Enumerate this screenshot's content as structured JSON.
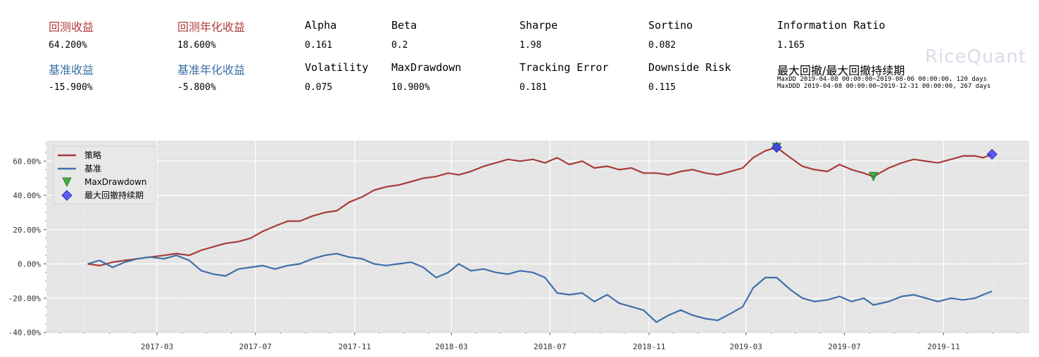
{
  "metrics_row1": [
    {
      "label": "回测收益",
      "value": "64.200%",
      "color": "red"
    },
    {
      "label": "回测年化收益",
      "value": "18.600%",
      "color": "red"
    },
    {
      "label": "Alpha",
      "value": "0.161",
      "color": "black"
    },
    {
      "label": "Beta",
      "value": "0.2",
      "color": "black"
    },
    {
      "label": "Sharpe",
      "value": "1.98",
      "color": "black"
    },
    {
      "label": "Sortino",
      "value": "0.082",
      "color": "black"
    },
    {
      "label": "Information Ratio",
      "value": "1.165",
      "color": "black"
    }
  ],
  "metrics_row2": [
    {
      "label": "基准收益",
      "value": "-15.900%",
      "color": "blue"
    },
    {
      "label": "基准年化收益",
      "value": "-5.800%",
      "color": "blue"
    },
    {
      "label": "Volatility",
      "value": "0.075",
      "color": "black"
    },
    {
      "label": "MaxDrawdown",
      "value": "10.900%",
      "color": "black"
    },
    {
      "label": "Tracking Error",
      "value": "0.181",
      "color": "black"
    },
    {
      "label": "Downside Risk",
      "value": "0.115",
      "color": "black"
    }
  ],
  "drawdown_info": {
    "label": "最大回撤/最大回撤持续期",
    "maxdd": "MaxDD  2019-04-08 00:00:00~2019-08-06 00:00:00, 120 days",
    "maxddd": "MaxDDD 2019-04-08 00:00:00~2019-12-31 00:00:00, 267 days"
  },
  "watermark": "RiceQuant",
  "colors": {
    "strategy": "#a83a3a",
    "benchmark": "#3f6fa8",
    "maxdd_marker": "#2ca02c",
    "maxddd_marker": "#3a3aff",
    "plot_bg": "#e5e5e5"
  },
  "chart_data": {
    "type": "line",
    "y_tick_labels": [
      "60.00%",
      "40.00%",
      "20.00%",
      "0.00%",
      "-20.00%",
      "-40.00%"
    ],
    "y_ticks": [
      60,
      40,
      20,
      0,
      -20,
      -40
    ],
    "ylim": [
      -40,
      72
    ],
    "x_tick_labels": [
      "2017-03",
      "2017-07",
      "2017-11",
      "2018-03",
      "2018-07",
      "2018-11",
      "2019-03",
      "2019-07",
      "2019-11"
    ],
    "x_ticks": [
      "2017-03-01",
      "2017-07-01",
      "2017-11-01",
      "2018-03-01",
      "2018-07-01",
      "2018-11-01",
      "2019-03-01",
      "2019-07-01",
      "2019-11-01"
    ],
    "xlim": [
      "2016-10-15",
      "2020-02-15"
    ],
    "grid": true,
    "legend_position": "top-left",
    "series": [
      {
        "name": "策略",
        "x": [
          "2016-12-05",
          "2016-12-20",
          "2017-01-05",
          "2017-01-20",
          "2017-02-05",
          "2017-02-20",
          "2017-03-10",
          "2017-03-25",
          "2017-04-10",
          "2017-04-25",
          "2017-05-10",
          "2017-05-25",
          "2017-06-10",
          "2017-06-25",
          "2017-07-10",
          "2017-07-25",
          "2017-08-10",
          "2017-08-25",
          "2017-09-10",
          "2017-09-25",
          "2017-10-10",
          "2017-10-25",
          "2017-11-10",
          "2017-11-25",
          "2017-12-10",
          "2017-12-25",
          "2018-01-10",
          "2018-01-25",
          "2018-02-10",
          "2018-02-25",
          "2018-03-10",
          "2018-03-25",
          "2018-04-10",
          "2018-04-25",
          "2018-05-10",
          "2018-05-25",
          "2018-06-10",
          "2018-06-25",
          "2018-07-10",
          "2018-07-25",
          "2018-08-10",
          "2018-08-25",
          "2018-09-10",
          "2018-09-25",
          "2018-10-10",
          "2018-10-25",
          "2018-11-10",
          "2018-11-25",
          "2018-12-10",
          "2018-12-25",
          "2019-01-10",
          "2019-01-25",
          "2019-02-10",
          "2019-02-25",
          "2019-03-10",
          "2019-03-25",
          "2019-04-08",
          "2019-04-25",
          "2019-05-10",
          "2019-05-25",
          "2019-06-10",
          "2019-06-25",
          "2019-07-10",
          "2019-07-25",
          "2019-08-06",
          "2019-08-25",
          "2019-09-10",
          "2019-09-25",
          "2019-10-10",
          "2019-10-25",
          "2019-11-10",
          "2019-11-25",
          "2019-12-10",
          "2019-12-20",
          "2019-12-31"
        ],
        "values": [
          0,
          -1,
          1,
          2,
          3,
          4,
          5,
          6,
          5,
          8,
          10,
          12,
          13,
          15,
          19,
          22,
          25,
          25,
          28,
          30,
          31,
          36,
          39,
          43,
          45,
          46,
          48,
          50,
          51,
          53,
          52,
          54,
          57,
          59,
          61,
          60,
          61,
          59,
          62,
          58,
          60,
          56,
          57,
          55,
          56,
          53,
          53,
          52,
          54,
          55,
          53,
          52,
          54,
          56,
          62,
          66,
          68,
          62,
          57,
          55,
          54,
          58,
          55,
          53,
          51,
          56,
          59,
          61,
          60,
          59,
          61,
          63,
          63,
          62,
          64
        ],
        "color": "#a83a3a"
      },
      {
        "name": "基准",
        "x": [
          "2016-12-05",
          "2016-12-20",
          "2017-01-05",
          "2017-01-20",
          "2017-02-05",
          "2017-02-20",
          "2017-03-10",
          "2017-03-25",
          "2017-04-10",
          "2017-04-25",
          "2017-05-10",
          "2017-05-25",
          "2017-06-10",
          "2017-06-25",
          "2017-07-10",
          "2017-07-25",
          "2017-08-10",
          "2017-08-25",
          "2017-09-10",
          "2017-09-25",
          "2017-10-10",
          "2017-10-25",
          "2017-11-10",
          "2017-11-25",
          "2017-12-10",
          "2017-12-25",
          "2018-01-10",
          "2018-01-25",
          "2018-02-10",
          "2018-02-25",
          "2018-03-10",
          "2018-03-25",
          "2018-04-10",
          "2018-04-25",
          "2018-05-10",
          "2018-05-25",
          "2018-06-10",
          "2018-06-25",
          "2018-07-10",
          "2018-07-25",
          "2018-08-10",
          "2018-08-25",
          "2018-09-10",
          "2018-09-25",
          "2018-10-10",
          "2018-10-25",
          "2018-11-10",
          "2018-11-25",
          "2018-12-10",
          "2018-12-25",
          "2019-01-10",
          "2019-01-25",
          "2019-02-10",
          "2019-02-25",
          "2019-03-10",
          "2019-03-25",
          "2019-04-08",
          "2019-04-25",
          "2019-05-10",
          "2019-05-25",
          "2019-06-10",
          "2019-06-25",
          "2019-07-10",
          "2019-07-25",
          "2019-08-06",
          "2019-08-25",
          "2019-09-10",
          "2019-09-25",
          "2019-10-10",
          "2019-10-25",
          "2019-11-10",
          "2019-11-25",
          "2019-12-10",
          "2019-12-20",
          "2019-12-31"
        ],
        "values": [
          0,
          2,
          -2,
          1,
          3,
          4,
          3,
          5,
          2,
          -4,
          -6,
          -7,
          -3,
          -2,
          -1,
          -3,
          -1,
          0,
          3,
          5,
          6,
          4,
          3,
          0,
          -1,
          0,
          1,
          -2,
          -8,
          -5,
          0,
          -4,
          -3,
          -5,
          -6,
          -4,
          -5,
          -8,
          -17,
          -18,
          -17,
          -22,
          -18,
          -23,
          -25,
          -27,
          -34,
          -30,
          -27,
          -30,
          -32,
          -33,
          -29,
          -25,
          -14,
          -8,
          -8,
          -15,
          -20,
          -22,
          -21,
          -19,
          -22,
          -20,
          -24,
          -22,
          -19,
          -18,
          -20,
          -22,
          -20,
          -21,
          -20,
          -18,
          -16
        ],
        "color": "#3f6fa8"
      }
    ],
    "markers": [
      {
        "name": "MaxDrawdown",
        "shape": "triangle-down",
        "points": [
          {
            "x": "2019-04-08",
            "y": 68
          },
          {
            "x": "2019-08-06",
            "y": 51
          }
        ]
      },
      {
        "name": "最大回撤持续期",
        "shape": "diamond",
        "points": [
          {
            "x": "2019-04-08",
            "y": 68
          },
          {
            "x": "2019-12-31",
            "y": 64
          }
        ]
      }
    ]
  }
}
